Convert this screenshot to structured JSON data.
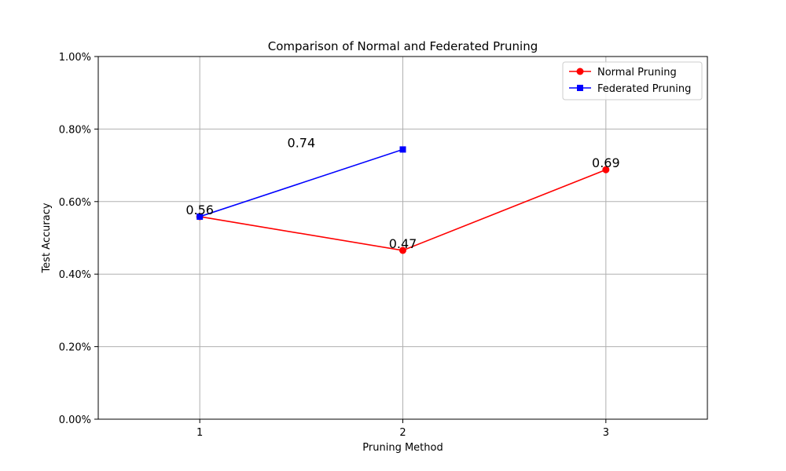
{
  "chart_data": {
    "type": "line",
    "title": "Comparison of Normal and Federated Pruning",
    "xlabel": "Pruning Method",
    "ylabel": "Test Accuracy",
    "x_ticks": [
      "1",
      "2",
      "3"
    ],
    "xlim": [
      0.5,
      3.5
    ],
    "ylim": [
      0.0,
      1.0
    ],
    "y_ticks": [
      "0.00%",
      "0.20%",
      "0.40%",
      "0.60%",
      "0.80%",
      "1.00%"
    ],
    "y_tick_values": [
      0.0,
      0.2,
      0.4,
      0.6,
      0.8,
      1.0
    ],
    "grid": true,
    "legend_position": "top-right",
    "series": [
      {
        "name": "Normal Pruning",
        "color": "#ff0000",
        "marker": "circle",
        "x": [
          1,
          2,
          3
        ],
        "y": [
          0.5585,
          0.4654,
          0.6878
        ]
      },
      {
        "name": "Federated Pruning",
        "color": "#0000ff",
        "marker": "square",
        "x": [
          1,
          2
        ],
        "y": [
          0.5585,
          0.7437
        ]
      }
    ],
    "annotations": [
      {
        "text": "0.56",
        "x": 1,
        "y": 0.5585
      },
      {
        "text": "0.47",
        "x": 2,
        "y": 0.4654
      },
      {
        "text": "0.69",
        "x": 3,
        "y": 0.6878
      },
      {
        "text": "0.74",
        "x": 1.5,
        "y": 0.7437
      }
    ]
  }
}
